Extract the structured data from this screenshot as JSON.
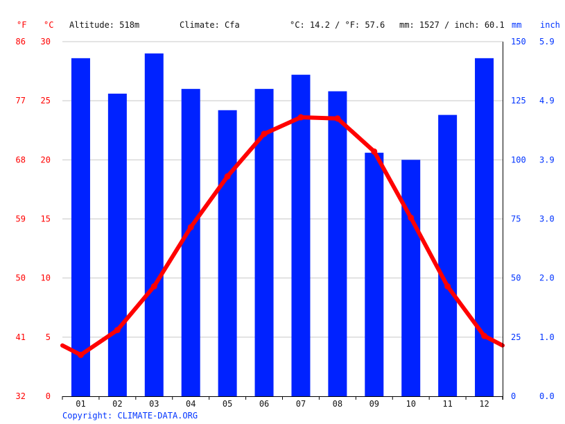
{
  "header": {
    "unit_f": "°F",
    "unit_c": "°C",
    "altitude": "Altitude: 518m",
    "climate": "Climate: Cfa",
    "temp_summary": "°C: 14.2 / °F: 57.6",
    "precip_summary": "mm: 1527 / inch: 60.1",
    "unit_mm": "mm",
    "unit_inch": "inch"
  },
  "footer": {
    "copyright": "Copyright: CLIMATE-DATA.ORG"
  },
  "colors": {
    "precipitation": "#0022ff",
    "temperature": "#ff0000",
    "left_axis": "#ff0000",
    "right_axis": "#0033ff"
  },
  "chart_data": {
    "type": "bar",
    "categories": [
      "01",
      "02",
      "03",
      "04",
      "05",
      "06",
      "07",
      "08",
      "09",
      "10",
      "11",
      "12"
    ],
    "series": [
      {
        "type": "bar",
        "axis": "right",
        "values": [
          143,
          128,
          145,
          130,
          121,
          130,
          136,
          129,
          103,
          100,
          119,
          143
        ]
      },
      {
        "type": "line",
        "axis": "left",
        "values": [
          3.5,
          5.6,
          9.3,
          14.3,
          18.6,
          22.2,
          23.6,
          23.5,
          20.7,
          15.1,
          9.3,
          5.1
        ]
      }
    ],
    "line_start_value": 4.3,
    "line_end_value": 4.3,
    "left_axis_c": {
      "ylim": [
        0,
        30
      ],
      "ticks": [
        "0",
        "5",
        "10",
        "15",
        "20",
        "25",
        "30"
      ]
    },
    "left_axis_f": {
      "ticks": [
        "32",
        "41",
        "50",
        "59",
        "68",
        "77",
        "86"
      ]
    },
    "right_axis_mm": {
      "ylim": [
        0,
        150
      ],
      "ticks": [
        "0",
        "25",
        "50",
        "75",
        "100",
        "125",
        "150"
      ]
    },
    "right_axis_inch": {
      "ticks": [
        "0.0",
        "1.0",
        "2.0",
        "3.0",
        "3.9",
        "4.9",
        "5.9"
      ]
    },
    "grid": true
  }
}
